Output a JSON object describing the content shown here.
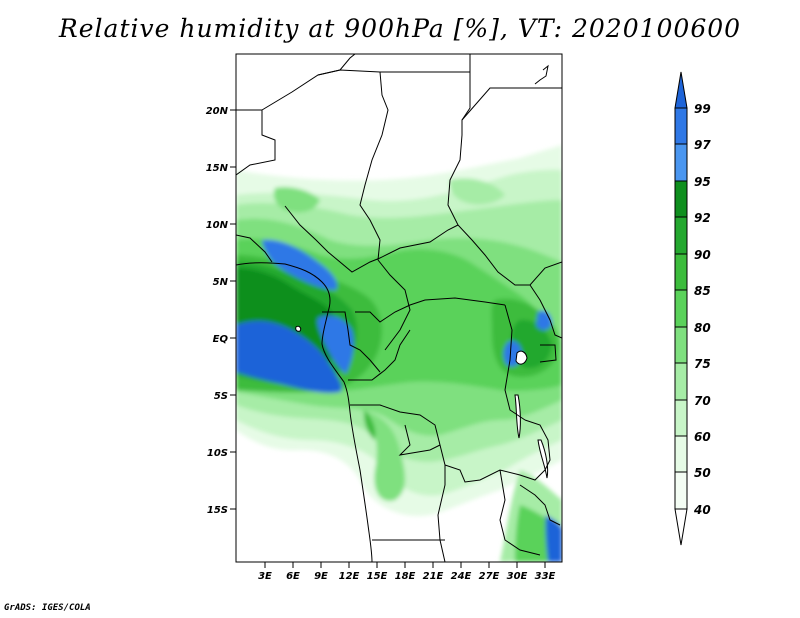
{
  "title": "Relative humidity at 900hPa [%], VT: 2020100600",
  "credit": "GrADS: IGES/COLA",
  "map": {
    "lat_ticks": [
      "20N",
      "15N",
      "10N",
      "5N",
      "EQ",
      "5S",
      "10S",
      "15S"
    ],
    "lon_ticks": [
      "3E",
      "6E",
      "9E",
      "12E",
      "15E",
      "18E",
      "21E",
      "24E",
      "27E",
      "30E",
      "33E"
    ]
  },
  "colorbar": {
    "levels": [
      "99",
      "97",
      "95",
      "92",
      "90",
      "85",
      "80",
      "75",
      "70",
      "60",
      "50",
      "40"
    ],
    "colors": [
      "#1e64d8",
      "#2f78e6",
      "#4a96f0",
      "#0f8f1e",
      "#24a82f",
      "#3cbc3c",
      "#5ad25a",
      "#7fe07f",
      "#a6eca6",
      "#c8f5c8",
      "#e6fbe6",
      "#ffffff"
    ]
  }
}
